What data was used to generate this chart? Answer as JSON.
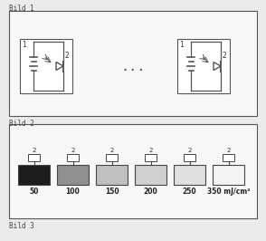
{
  "bg_color": "#ebebeb",
  "text_color": "#444444",
  "bild1_label": "Bild 1",
  "bild2_label": "Bild 2",
  "bild3_label": "Bild 3",
  "inner_box_color": "#ffffff",
  "box_border": "#666666",
  "dots": "...",
  "uv_doses": [
    "50",
    "100",
    "150",
    "200",
    "250",
    "350 mJ/cm²"
  ],
  "bild2_box_colors": [
    "#1c1c1c",
    "#909090",
    "#c0c0c0",
    "#d0d0d0",
    "#e0e0e0",
    "#f4f4f4"
  ]
}
